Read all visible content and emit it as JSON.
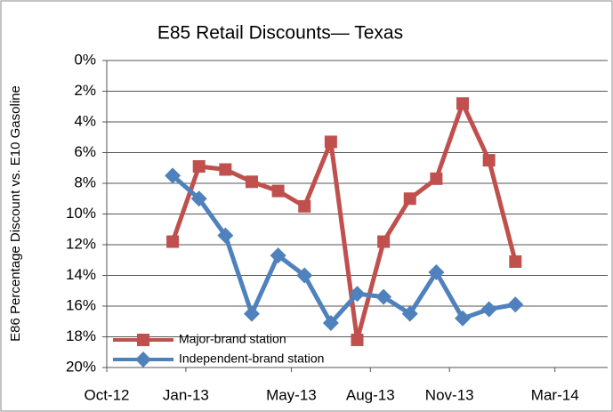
{
  "chart_data": {
    "type": "line",
    "title": "E85 Retail Discounts— Texas",
    "y_label": "E86 Percentage Discount vs. E10 Gasoline",
    "x": [
      "2012-12",
      "2013-01",
      "2013-02",
      "2013-03",
      "2013-04",
      "2013-05",
      "2013-06",
      "2013-07",
      "2013-08",
      "2013-09",
      "2013-10",
      "2013-11",
      "2013-12",
      "2014-01"
    ],
    "xlim": [
      "2012-10",
      "2014-05"
    ],
    "xticks": [
      {
        "value": "2012-10",
        "label": "Oct-12"
      },
      {
        "value": "2013-01",
        "label": "Jan-13"
      },
      {
        "value": "2013-05",
        "label": "May-13"
      },
      {
        "value": "2013-08",
        "label": "Aug-13"
      },
      {
        "value": "2013-11",
        "label": "Nov-13"
      },
      {
        "value": "2014-03",
        "label": "Mar-14"
      }
    ],
    "ylim": [
      0,
      20
    ],
    "y_reversed": true,
    "yticks": [
      {
        "value": 0,
        "label": "0%"
      },
      {
        "value": 2,
        "label": "2%"
      },
      {
        "value": 4,
        "label": "4%"
      },
      {
        "value": 6,
        "label": "6%"
      },
      {
        "value": 8,
        "label": "8%"
      },
      {
        "value": 10,
        "label": "10%"
      },
      {
        "value": 12,
        "label": "12%"
      },
      {
        "value": 14,
        "label": "14%"
      },
      {
        "value": 16,
        "label": "16%"
      },
      {
        "value": 18,
        "label": "18%"
      },
      {
        "value": 20,
        "label": "20%"
      }
    ],
    "grid": true,
    "legend": "lower left",
    "series": [
      {
        "name": "Major-brand station",
        "color": "#c0504d",
        "marker": "square",
        "values": [
          11.8,
          6.9,
          7.1,
          7.9,
          8.5,
          9.5,
          5.3,
          18.2,
          11.8,
          9.0,
          7.7,
          2.8,
          6.5,
          13.1
        ]
      },
      {
        "name": "Independent-brand station",
        "color": "#4f81bd",
        "marker": "diamond",
        "values": [
          7.5,
          9.0,
          11.4,
          16.5,
          12.7,
          14.0,
          17.1,
          15.2,
          15.4,
          16.5,
          13.8,
          16.8,
          16.2,
          15.9
        ]
      }
    ]
  }
}
